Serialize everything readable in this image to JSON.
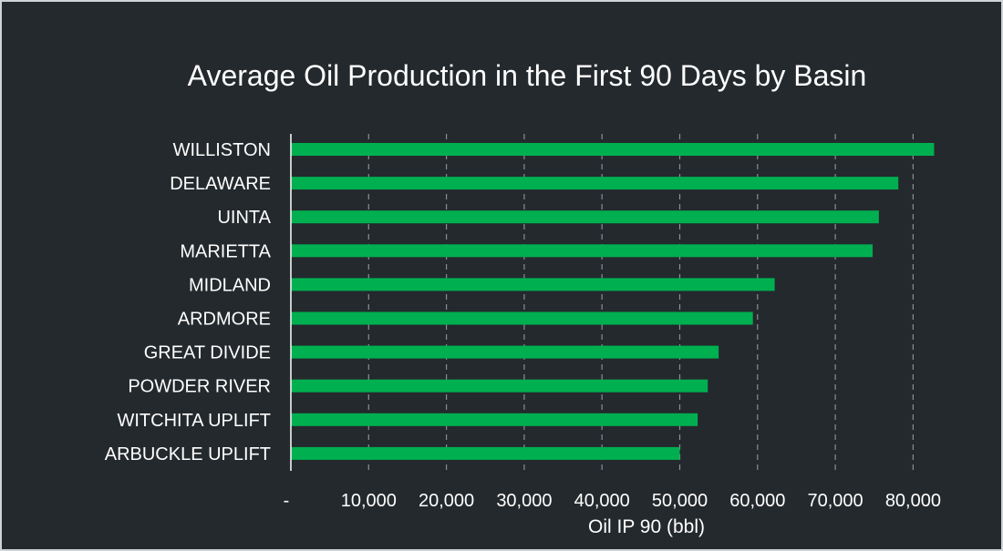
{
  "chart_data": {
    "type": "bar",
    "orientation": "horizontal",
    "title": "Average Oil Production in the First 90 Days by Basin",
    "xlabel": "Oil IP 90 (bbl)",
    "ylabel": "",
    "categories": [
      "WILLISTON",
      "DELAWARE",
      "UINTA",
      "MARIETTA",
      "MIDLAND",
      "ARDMORE",
      "GREAT DIVIDE",
      "POWDER RIVER",
      "WITCHITA UPLIFT",
      "ARBUCKLE UPLIFT"
    ],
    "values": [
      82700,
      78100,
      75600,
      74800,
      62200,
      59400,
      55000,
      53600,
      52300,
      50000
    ],
    "xlim": [
      0,
      85000
    ],
    "xticks": [
      0,
      10000,
      20000,
      30000,
      40000,
      50000,
      60000,
      70000,
      80000
    ],
    "xtick_labels": [
      "-",
      "10,000",
      "20,000",
      "30,000",
      "40,000",
      "50,000",
      "60,000",
      "70,000",
      "80,000"
    ],
    "grid": true,
    "legend": "none",
    "colors": {
      "background": "#24292d",
      "bar": "#00b050",
      "text": "#ffffff",
      "grid": "#8a8f94",
      "border": "#d0d3d6"
    }
  }
}
